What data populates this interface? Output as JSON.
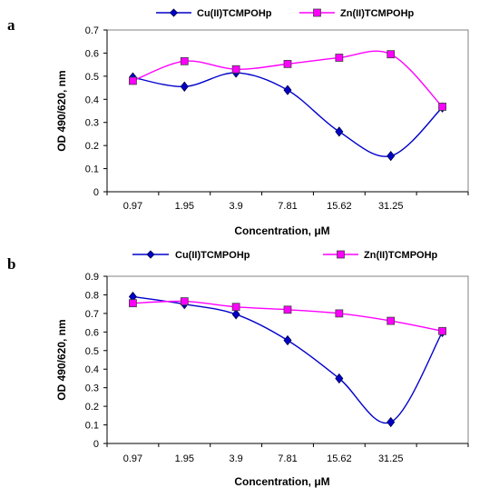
{
  "chart_data": [
    {
      "type": "line",
      "panel_label": "a",
      "categories": [
        "0.97",
        "1.95",
        "3.9",
        "7.81",
        "15.62",
        "31.25",
        ""
      ],
      "series": [
        {
          "name": "Cu(II)TCMPOHp",
          "color": "#0000cc",
          "marker": "diamond",
          "values": [
            0.495,
            0.455,
            0.515,
            0.44,
            0.26,
            0.155,
            0.365
          ]
        },
        {
          "name": "Zn(II)TCMPOHp",
          "color": "#ff00ff",
          "marker": "square",
          "values": [
            0.48,
            0.565,
            0.53,
            0.553,
            0.58,
            0.595,
            0.368
          ]
        }
      ],
      "xlabel": "Concentration, μM",
      "ylabel": "OD 490/620, nm",
      "ylim": [
        0,
        0.7
      ],
      "yticks": [
        "0",
        "0.1",
        "0.2",
        "0.3",
        "0.4",
        "0.5",
        "0.6",
        "0.7"
      ],
      "grid": false,
      "legend": "top"
    },
    {
      "type": "line",
      "panel_label": "b",
      "categories": [
        "0.97",
        "1.95",
        "3.9",
        "7.81",
        "15.62",
        "31.25",
        ""
      ],
      "series": [
        {
          "name": "Cu(II)TCMPOHp",
          "color": "#0000cc",
          "marker": "diamond",
          "values": [
            0.79,
            0.75,
            0.695,
            0.555,
            0.35,
            0.115,
            0.6
          ]
        },
        {
          "name": "Zn(II)TCMPOHp",
          "color": "#ff00ff",
          "marker": "square",
          "values": [
            0.755,
            0.765,
            0.735,
            0.72,
            0.7,
            0.66,
            0.605
          ]
        }
      ],
      "xlabel": "Concentration, μM",
      "ylabel": "OD 490/620, nm",
      "ylim": [
        0,
        0.9
      ],
      "yticks": [
        "0",
        "0.1",
        "0.2",
        "0.3",
        "0.4",
        "0.5",
        "0.6",
        "0.7",
        "0.8",
        "0.9"
      ],
      "grid": false,
      "legend": "top"
    }
  ]
}
